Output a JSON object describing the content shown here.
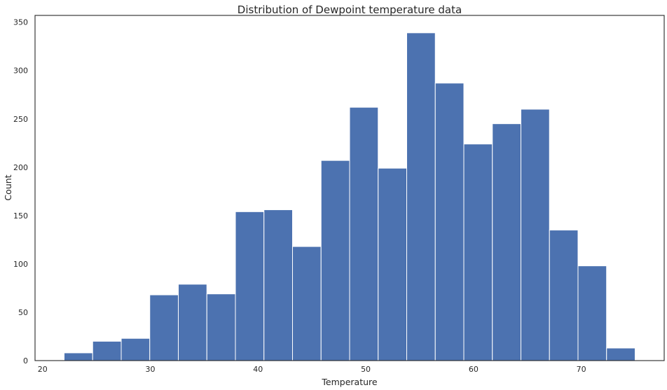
{
  "chart_data": {
    "type": "bar",
    "title": "Distribution of Dewpoint temperature data",
    "xlabel": "Temperature",
    "ylabel": "Count",
    "xlim": [
      19.3,
      77.7
    ],
    "ylim": [
      0,
      357
    ],
    "xticks": [
      20,
      30,
      40,
      50,
      60,
      70
    ],
    "yticks": [
      0,
      50,
      100,
      150,
      200,
      250,
      300,
      350
    ],
    "bin_start": 22,
    "bin_width": 2.65,
    "values": [
      8,
      20,
      23,
      68,
      79,
      69,
      154,
      156,
      118,
      207,
      262,
      199,
      339,
      287,
      224,
      245,
      260,
      135,
      98,
      13
    ],
    "grid": false,
    "bar_color": "#4c72b0"
  }
}
